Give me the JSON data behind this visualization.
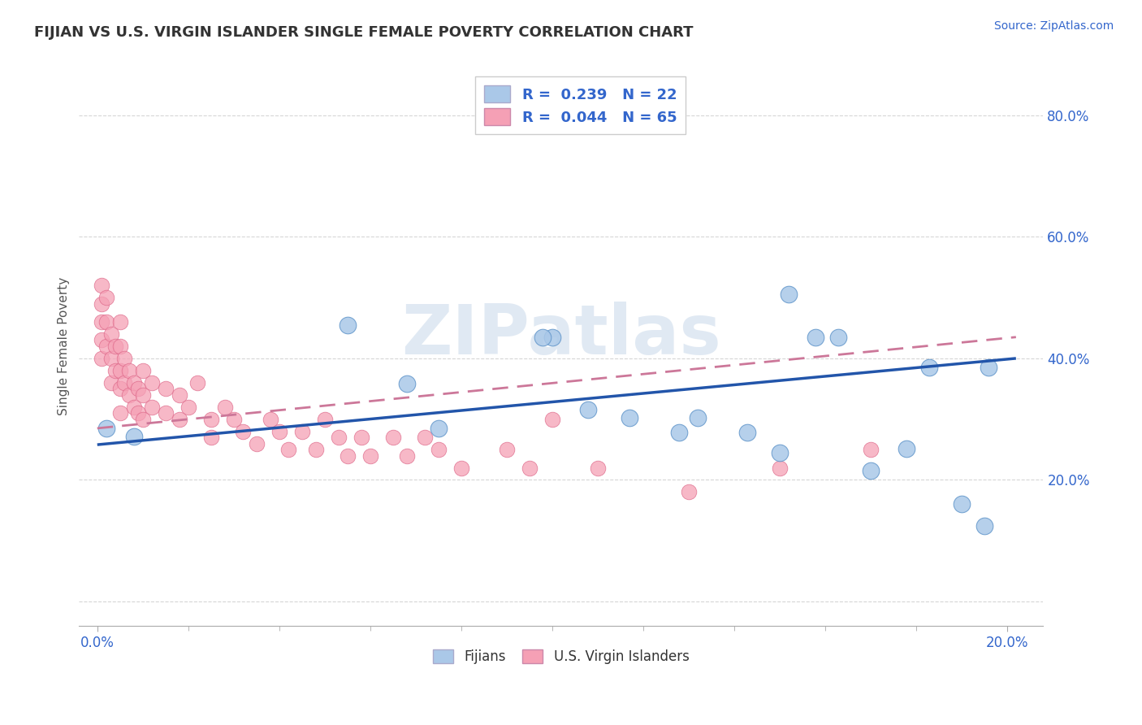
{
  "title": "FIJIAN VS U.S. VIRGIN ISLANDER SINGLE FEMALE POVERTY CORRELATION CHART",
  "source": "Source: ZipAtlas.com",
  "ylabel": "Single Female Poverty",
  "xlim_min": -0.004,
  "xlim_max": 0.208,
  "ylim_min": -0.04,
  "ylim_max": 0.88,
  "ytick_vals": [
    0.0,
    0.2,
    0.4,
    0.6,
    0.8
  ],
  "ytick_labels": [
    "",
    "20.0%",
    "40.0%",
    "60.0%",
    "80.0%"
  ],
  "xtick_vals": [
    0.0,
    0.2
  ],
  "xtick_labels": [
    "0.0%",
    "20.0%"
  ],
  "legend_R_fijian": "0.239",
  "legend_N_fijian": "22",
  "legend_R_virgin": "0.044",
  "legend_N_virgin": "65",
  "fijian_color": "#aac8e8",
  "virgin_color": "#f5a0b5",
  "fijian_edge": "#6699cc",
  "virgin_edge": "#dd6688",
  "trend_fijian_color": "#2255aa",
  "trend_virgin_color": "#cc7799",
  "watermark": "ZIPatlas",
  "fijian_x": [
    0.002,
    0.008,
    0.055,
    0.068,
    0.075,
    0.1,
    0.098,
    0.108,
    0.117,
    0.128,
    0.132,
    0.143,
    0.15,
    0.152,
    0.158,
    0.163,
    0.17,
    0.178,
    0.183,
    0.19,
    0.195,
    0.196
  ],
  "fijian_y": [
    0.285,
    0.272,
    0.455,
    0.358,
    0.285,
    0.435,
    0.435,
    0.315,
    0.302,
    0.278,
    0.302,
    0.278,
    0.245,
    0.505,
    0.435,
    0.435,
    0.215,
    0.252,
    0.385,
    0.16,
    0.125,
    0.385
  ],
  "virgin_x": [
    0.001,
    0.001,
    0.001,
    0.001,
    0.001,
    0.002,
    0.002,
    0.002,
    0.003,
    0.003,
    0.003,
    0.004,
    0.004,
    0.005,
    0.005,
    0.005,
    0.005,
    0.005,
    0.006,
    0.006,
    0.007,
    0.007,
    0.008,
    0.008,
    0.009,
    0.009,
    0.01,
    0.01,
    0.01,
    0.012,
    0.012,
    0.015,
    0.015,
    0.018,
    0.018,
    0.02,
    0.022,
    0.025,
    0.025,
    0.028,
    0.03,
    0.032,
    0.035,
    0.038,
    0.04,
    0.042,
    0.045,
    0.048,
    0.05,
    0.053,
    0.055,
    0.058,
    0.06,
    0.065,
    0.068,
    0.072,
    0.075,
    0.08,
    0.09,
    0.095,
    0.1,
    0.11,
    0.13,
    0.15,
    0.17
  ],
  "virgin_y": [
    0.52,
    0.49,
    0.46,
    0.43,
    0.4,
    0.5,
    0.46,
    0.42,
    0.44,
    0.4,
    0.36,
    0.42,
    0.38,
    0.46,
    0.42,
    0.38,
    0.35,
    0.31,
    0.4,
    0.36,
    0.38,
    0.34,
    0.36,
    0.32,
    0.35,
    0.31,
    0.38,
    0.34,
    0.3,
    0.36,
    0.32,
    0.35,
    0.31,
    0.34,
    0.3,
    0.32,
    0.36,
    0.3,
    0.27,
    0.32,
    0.3,
    0.28,
    0.26,
    0.3,
    0.28,
    0.25,
    0.28,
    0.25,
    0.3,
    0.27,
    0.24,
    0.27,
    0.24,
    0.27,
    0.24,
    0.27,
    0.25,
    0.22,
    0.25,
    0.22,
    0.3,
    0.22,
    0.18,
    0.22,
    0.25
  ]
}
